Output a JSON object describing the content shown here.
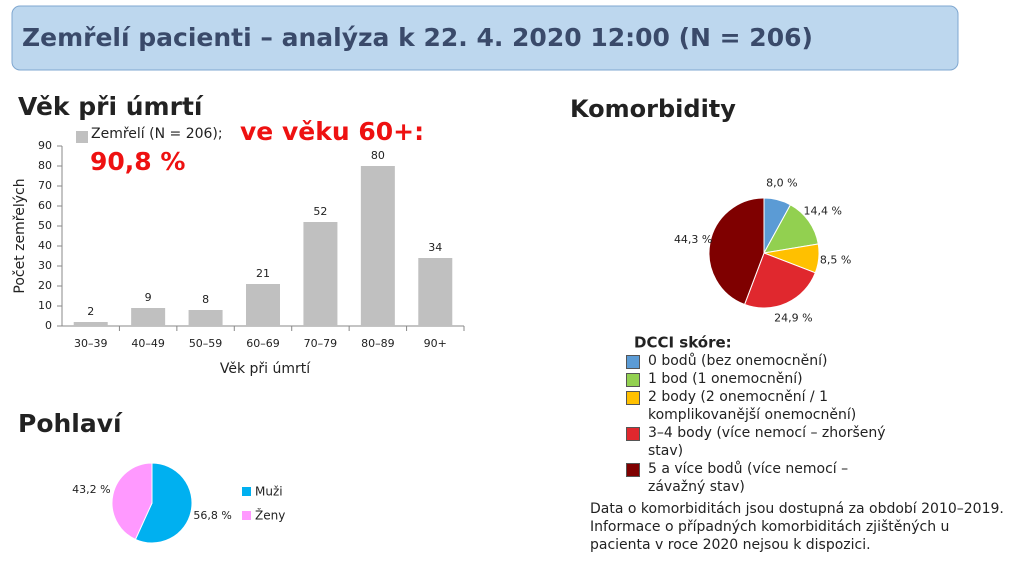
{
  "title": "Zemřelí pacienti – analýza k 22. 4. 2020 12:00 (N = 206)",
  "chart_data": [
    {
      "type": "bar",
      "title": "Věk při úmrtí",
      "x_label": "Věk při úmrtí",
      "y_label": "Počet zemřelých",
      "annotation": [
        "ve věku 60+:",
        "90,8 %"
      ],
      "categories": [
        "30–39",
        "40–49",
        "50–59",
        "60–69",
        "70–79",
        "80–89",
        "90+"
      ],
      "series": [
        {
          "name": "Zemřelí (N = 206);",
          "color": "#c0c0c0",
          "values": [
            2,
            9,
            8,
            21,
            52,
            80,
            34
          ]
        }
      ],
      "ylim": [
        0,
        90
      ],
      "yticks": [
        0,
        10,
        20,
        30,
        40,
        50,
        60,
        70,
        80,
        90
      ],
      "grid": false
    },
    {
      "type": "pie",
      "title": "Pohlaví",
      "categories": [
        "Muži",
        "Ženy"
      ],
      "values": [
        56.8,
        43.2
      ],
      "value_labels": [
        "56,8 %",
        "43,2 %"
      ],
      "colors": [
        "#00b0f0",
        "#ff99ff"
      ]
    },
    {
      "type": "pie",
      "title": "Komorbidity",
      "legend_title": "DCCI skóre:",
      "categories": [
        "0 bodů (bez onemocnění)",
        "1 bod (1 onemocnění)",
        "2 body (2 onemocnění / 1 komplikovanější onemocnění)",
        "3–4 body (více nemocí – zhoršený stav)",
        "5 a více bodů (více nemocí – závažný stav)"
      ],
      "values": [
        8.0,
        14.4,
        8.5,
        24.9,
        44.3
      ],
      "value_labels": [
        "8,0 %",
        "14,4 %",
        "8,5 %",
        "24,9 %",
        "44,3 %"
      ],
      "colors": [
        "#5b9bd5",
        "#92d050",
        "#ffc000",
        "#e0282e",
        "#7f0000"
      ]
    }
  ],
  "note": "Data o komorbiditách jsou dostupná za období 2010–2019. Informace o případných komorbiditách zjištěných u pacienta v roce 2020 nejsou k dispozici."
}
